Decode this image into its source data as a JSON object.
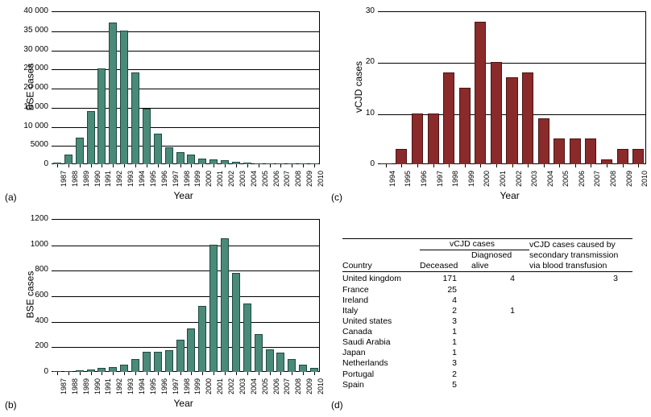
{
  "global": {
    "font_family": "Arial, sans-serif",
    "bg": "#ffffff",
    "axis_color": "#000000",
    "grid_color": "#000000",
    "xlabel_fontsize": 12,
    "ylabel_fontsize": 12,
    "tick_fontsize": 10
  },
  "panel_a": {
    "type": "bar",
    "sub_label": "(a)",
    "xlabel": "Year",
    "ylabel": "BSE cases",
    "bar_color": "#4a8a78",
    "bar_border": "#1e4a40",
    "ylim": [
      0,
      40000
    ],
    "yticks": [
      0,
      5000,
      10000,
      15000,
      20000,
      25000,
      30000,
      35000,
      40000
    ],
    "ytick_labels": [
      "0",
      "5000",
      "10 000",
      "15 000",
      "20 000",
      "25 000",
      "30 000",
      "35 000",
      "40 000"
    ],
    "categories": [
      "1987",
      "1988",
      "1989",
      "1990",
      "1991",
      "1992",
      "1993",
      "1994",
      "1995",
      "1996",
      "1997",
      "1998",
      "1999",
      "2000",
      "2001",
      "2002",
      "2003",
      "2004",
      "2005",
      "2006",
      "2007",
      "2008",
      "2009",
      "2010"
    ],
    "values": [
      500,
      2500,
      7000,
      14000,
      25000,
      37000,
      35000,
      24000,
      14500,
      8000,
      4500,
      3200,
      2500,
      1500,
      1200,
      1100,
      600,
      350,
      220,
      120,
      70,
      40,
      20,
      10
    ]
  },
  "panel_b": {
    "type": "bar",
    "sub_label": "(b)",
    "xlabel": "Year",
    "ylabel": "BSE cases",
    "bar_color": "#4a8a78",
    "bar_border": "#1e4a40",
    "ylim": [
      0,
      1200
    ],
    "yticks": [
      0,
      200,
      400,
      600,
      800,
      1000,
      1200
    ],
    "ytick_labels": [
      "0",
      "200",
      "400",
      "600",
      "800",
      "1000",
      "1200"
    ],
    "categories": [
      "1987",
      "1988",
      "1989",
      "1990",
      "1991",
      "1992",
      "1993",
      "1994",
      "1995",
      "1996",
      "1997",
      "1998",
      "1999",
      "2000",
      "2001",
      "2002",
      "2003",
      "2004",
      "2005",
      "2006",
      "2007",
      "2008",
      "2009",
      "2010"
    ],
    "values": [
      0,
      5,
      15,
      20,
      30,
      40,
      60,
      100,
      160,
      160,
      170,
      250,
      340,
      520,
      1000,
      1050,
      780,
      540,
      300,
      180,
      150,
      100,
      60,
      30
    ]
  },
  "panel_c": {
    "type": "bar",
    "sub_label": "(c)",
    "xlabel": "Year",
    "ylabel": "vCJD cases",
    "bar_color": "#8b2a2a",
    "bar_border": "#4a1515",
    "ylim": [
      0,
      30
    ],
    "yticks": [
      0,
      10,
      20,
      30
    ],
    "ytick_labels": [
      "0",
      "10",
      "20",
      "30"
    ],
    "categories": [
      "1994",
      "1995",
      "1996",
      "1997",
      "1998",
      "1999",
      "2000",
      "2001",
      "2002",
      "2003",
      "2004",
      "2005",
      "2006",
      "2007",
      "2008",
      "2009",
      "2010"
    ],
    "values": [
      0,
      3,
      10,
      10,
      18,
      15,
      28,
      20,
      17,
      18,
      9,
      5,
      5,
      5,
      1,
      3,
      3
    ]
  },
  "panel_d": {
    "sub_label": "(d)",
    "type": "table",
    "header_group": "vCJD cases",
    "columns": [
      "Country",
      "Deceased",
      "Diagnosed alive",
      "vCJD cases caused by secondary transmission via blood transfusion"
    ],
    "rows": [
      [
        "United kingdom",
        "171",
        "4",
        "3"
      ],
      [
        "France",
        "25",
        "",
        ""
      ],
      [
        "Ireland",
        "4",
        "",
        ""
      ],
      [
        "Italy",
        "2",
        "1",
        ""
      ],
      [
        "United states",
        "3",
        "",
        ""
      ],
      [
        "Canada",
        "1",
        "",
        ""
      ],
      [
        "Saudi Arabia",
        "1",
        "",
        ""
      ],
      [
        "Japan",
        "1",
        "",
        ""
      ],
      [
        "Netherlands",
        "3",
        "",
        ""
      ],
      [
        "Portugal",
        "2",
        "",
        ""
      ],
      [
        "Spain",
        "5",
        "",
        ""
      ]
    ]
  }
}
